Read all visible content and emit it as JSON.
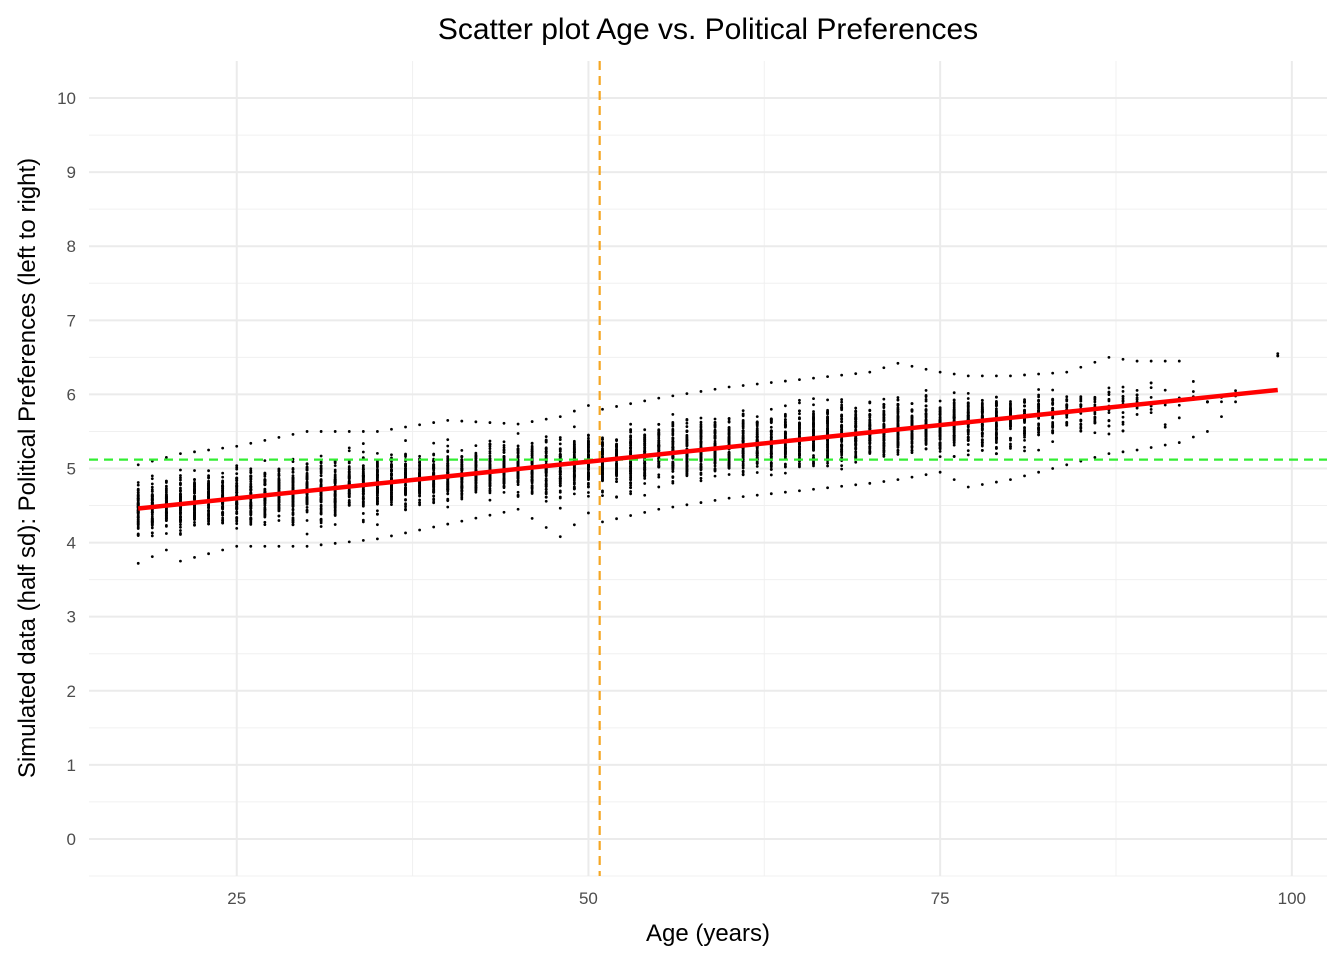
{
  "chart_data": {
    "type": "scatter",
    "title": "Scatter plot Age vs. Political Preferences",
    "xlabel": "Age (years)",
    "ylabel": "Simulated data (half sd): Political Preferences (left to right)",
    "xlim": [
      14.5,
      102.5
    ],
    "ylim": [
      -0.5,
      10.5
    ],
    "x_ticks": [
      25,
      50,
      75,
      100
    ],
    "y_ticks": [
      0,
      1,
      2,
      3,
      4,
      5,
      6,
      7,
      8,
      9,
      10
    ],
    "grid": true,
    "point_color": "#000000",
    "age_range": [
      18,
      99
    ],
    "regression_line": {
      "x": [
        18,
        99
      ],
      "y": [
        4.46,
        6.06
      ],
      "color": "#ff0000"
    },
    "mean_age_line": {
      "x": 50.8,
      "color": "#f5a623",
      "style": "dashed"
    },
    "mean_preference_line": {
      "y": 5.12,
      "color": "#33ee33",
      "style": "dashed"
    },
    "spread_by_age": [
      {
        "age": 18,
        "min": 3.72,
        "max": 5.05
      },
      {
        "age": 20,
        "min": 3.9,
        "max": 5.15
      },
      {
        "age": 21,
        "min": 3.75,
        "max": 5.2
      },
      {
        "age": 25,
        "min": 3.95,
        "max": 5.3
      },
      {
        "age": 30,
        "min": 3.95,
        "max": 5.5
      },
      {
        "age": 35,
        "min": 4.05,
        "max": 5.5
      },
      {
        "age": 40,
        "min": 4.25,
        "max": 5.65
      },
      {
        "age": 45,
        "min": 4.45,
        "max": 5.6
      },
      {
        "age": 48,
        "min": 4.08,
        "max": 5.7
      },
      {
        "age": 50,
        "min": 4.4,
        "max": 5.85
      },
      {
        "age": 51,
        "min": 4.28,
        "max": 5.8
      },
      {
        "age": 55,
        "min": 4.45,
        "max": 5.95
      },
      {
        "age": 60,
        "min": 4.6,
        "max": 6.1
      },
      {
        "age": 65,
        "min": 4.7,
        "max": 6.2
      },
      {
        "age": 70,
        "min": 4.8,
        "max": 6.3
      },
      {
        "age": 72,
        "min": 4.85,
        "max": 6.42
      },
      {
        "age": 75,
        "min": 4.95,
        "max": 6.3
      },
      {
        "age": 77,
        "min": 4.75,
        "max": 6.25
      },
      {
        "age": 80,
        "min": 4.85,
        "max": 6.25
      },
      {
        "age": 84,
        "min": 5.05,
        "max": 6.3
      },
      {
        "age": 87,
        "min": 5.2,
        "max": 6.5
      },
      {
        "age": 89,
        "min": 5.25,
        "max": 6.45
      },
      {
        "age": 92,
        "min": 5.35,
        "max": 6.45
      },
      {
        "age": 94,
        "min": 5.5,
        "max": 5.9
      },
      {
        "age": 96,
        "min": 5.9,
        "max": 6.05
      },
      {
        "age": 99,
        "min": 6.52,
        "max": 6.55
      }
    ]
  }
}
